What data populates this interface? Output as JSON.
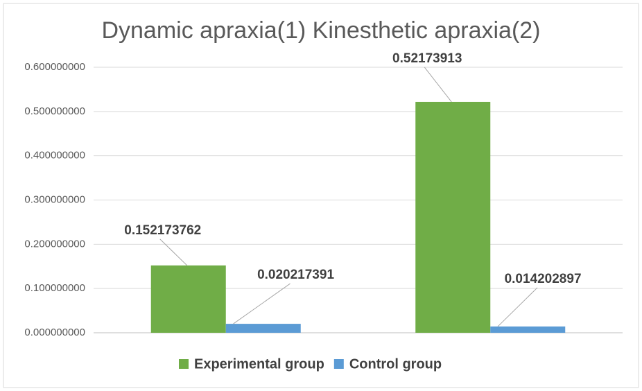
{
  "chart_data": {
    "type": "bar",
    "title": "Dynamic apraxia(1) Kinesthetic apraxia(2)",
    "categories": [
      null,
      null
    ],
    "series": [
      {
        "name": "Experimental group",
        "color": "#70ad47",
        "values": [
          0.152173762,
          0.52173913
        ]
      },
      {
        "name": "Control group",
        "color": "#5b9bd5",
        "values": [
          0.020217391,
          0.014202897
        ]
      }
    ],
    "ylim": [
      0,
      0.6
    ],
    "yticks": [
      {
        "value": 0,
        "label": "0.000000000"
      },
      {
        "value": 0.1,
        "label": "0.100000000"
      },
      {
        "value": 0.2,
        "label": "0.200000000"
      },
      {
        "value": 0.3,
        "label": "0.300000000"
      },
      {
        "value": 0.4,
        "label": "0.400000000"
      },
      {
        "value": 0.5,
        "label": "0.500000000"
      },
      {
        "value": 0.6,
        "label": "0.600000000"
      }
    ],
    "grid": true,
    "legend": "bottom"
  }
}
